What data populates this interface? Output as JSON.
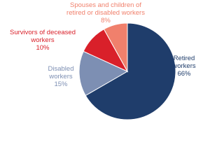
{
  "chart_data": {
    "type": "pie",
    "categories": [
      "Retired workers",
      "Disabled workers",
      "Survivors of deceased workers",
      "Spouses and children of retired or disabled workers"
    ],
    "values": [
      66,
      15,
      10,
      8
    ],
    "value_labels": [
      "66%",
      "15%",
      "10%",
      "8%"
    ],
    "colors": [
      "#1f3d6b",
      "#7d8fb3",
      "#d9202a",
      "#f0806c"
    ]
  }
}
